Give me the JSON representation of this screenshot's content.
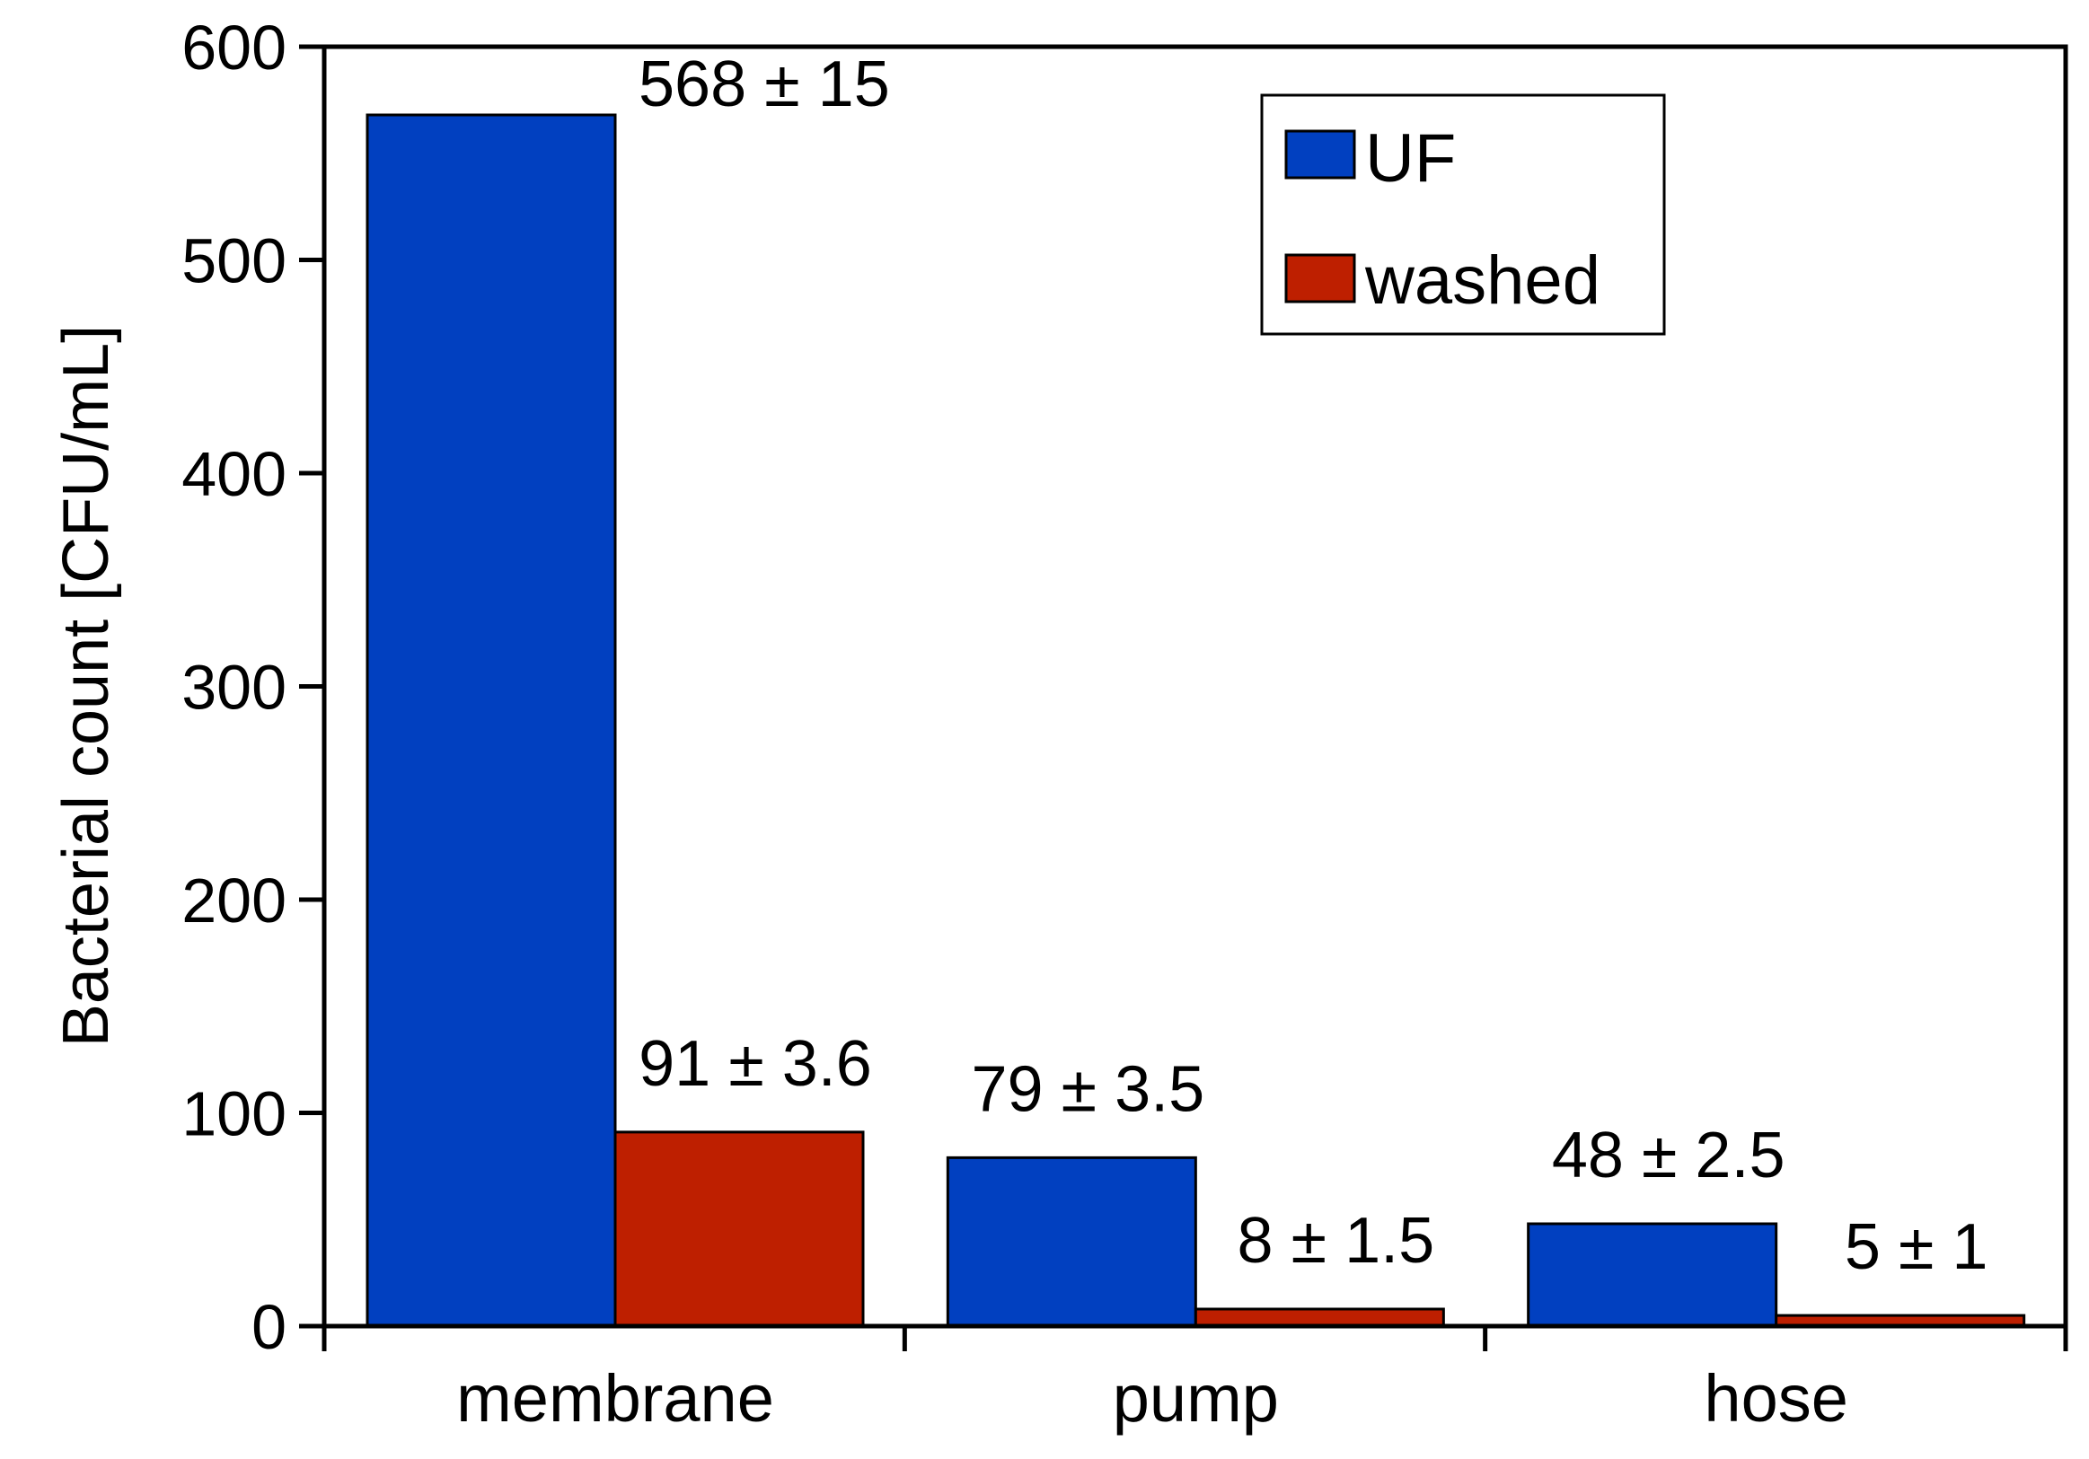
{
  "chart_data": {
    "type": "bar",
    "categories": [
      "membrane",
      "pump",
      "hose"
    ],
    "series": [
      {
        "name": "UF",
        "color": "#0140C0",
        "values": [
          568,
          79,
          48
        ],
        "labels": [
          "568 ± 15",
          "79 ± 3.5",
          "48 ± 2.5"
        ]
      },
      {
        "name": "washed",
        "color": "#BE1F00",
        "values": [
          91,
          8,
          5
        ],
        "labels": [
          "91 ± 3.6",
          "8 ± 1.5",
          "5 ± 1"
        ]
      }
    ],
    "title": "",
    "xlabel": "",
    "ylabel": "Bacterial count [CFU/mL]",
    "ylim": [
      0,
      600
    ],
    "yticks": [
      0,
      100,
      200,
      300,
      400,
      500,
      600
    ],
    "grid": false,
    "legend_position": "top-right"
  }
}
